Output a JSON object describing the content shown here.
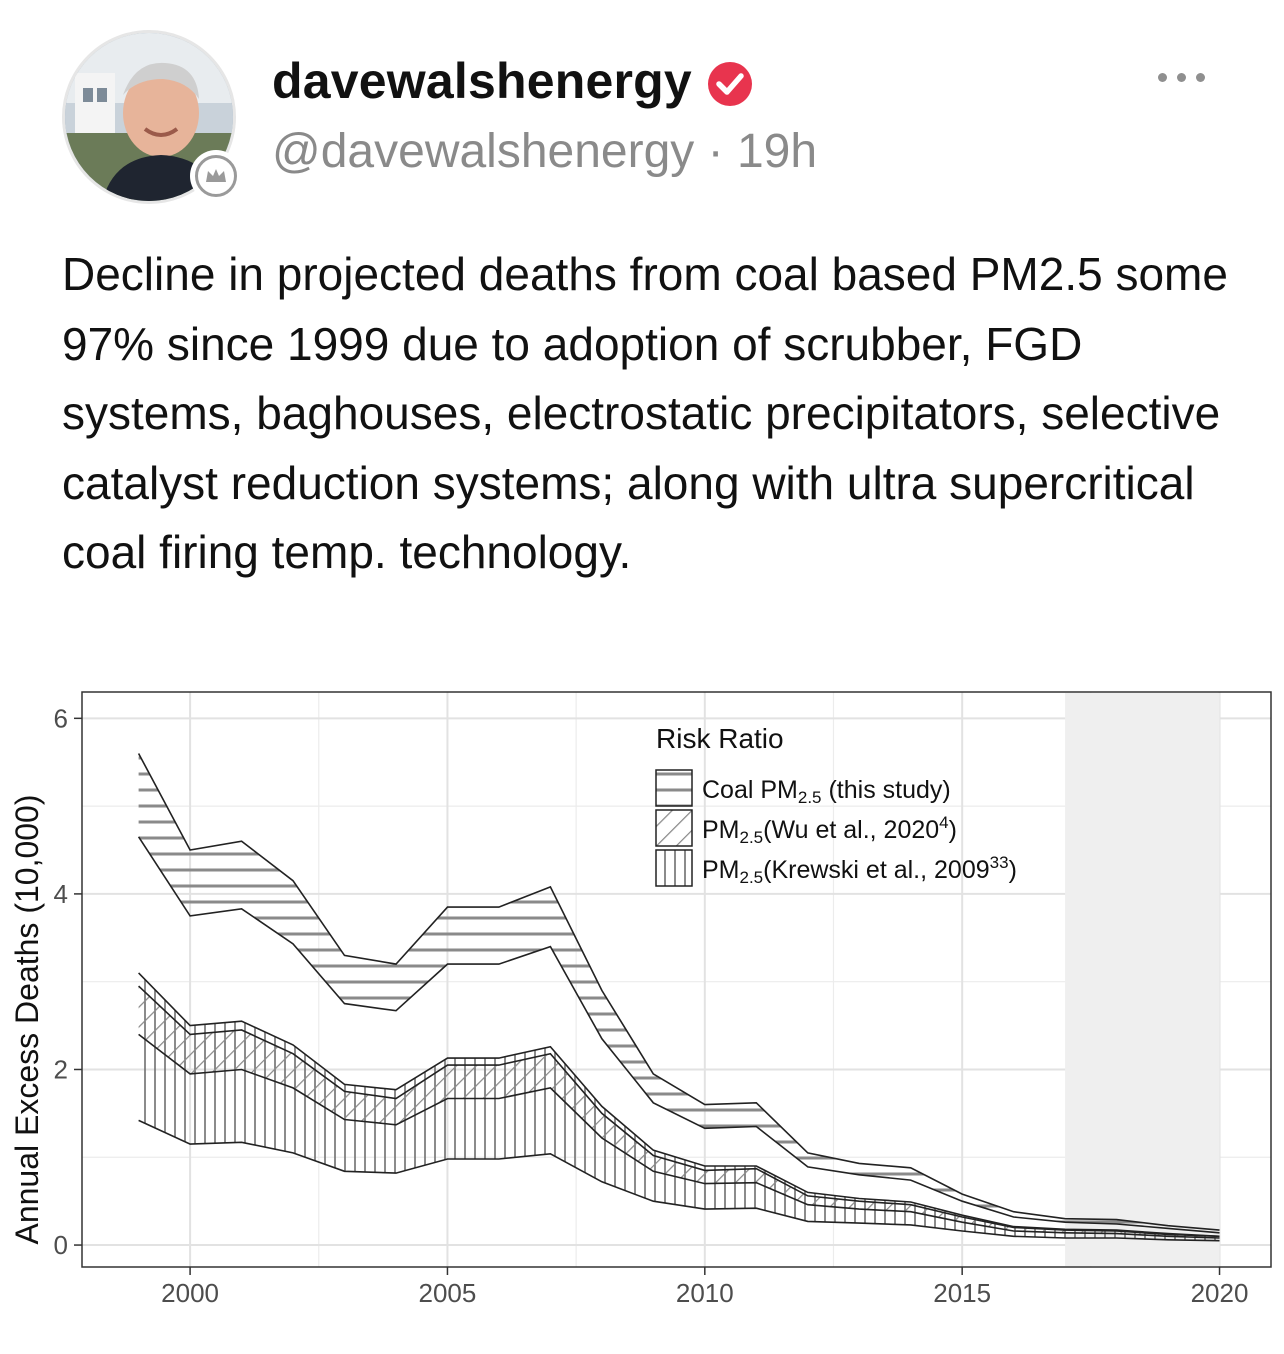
{
  "post": {
    "display_name": "davewalshenergy",
    "handle": "@davewalshenergy",
    "time": "19h",
    "text": "Decline in projected deaths from coal based PM2.5 some 97% since 1999 due to adoption of scrubber, FGD systems, baghouses, electrostatic precipitators, selective catalyst reduction systems; along with ultra supercritical coal firing temp. technology.",
    "verified_color": "#e8344e",
    "more_icon": "more-horizontal-icon"
  },
  "chart_data": {
    "type": "area",
    "ylabel": "Annual Excess Deaths (10,000)",
    "xlabel": "",
    "xlim": [
      1997.9,
      2021.0
    ],
    "ylim": [
      -0.25,
      6.3
    ],
    "x_ticks": [
      2000,
      2005,
      2010,
      2015,
      2020
    ],
    "y_ticks": [
      0,
      2,
      4,
      6
    ],
    "x_tick_labels": [
      "2000",
      "2005",
      "2010",
      "2015",
      "2020"
    ],
    "y_tick_labels": [
      "0",
      "2",
      "4",
      "6"
    ],
    "grid": true,
    "shaded_region": [
      2017,
      2020
    ],
    "legend": {
      "title": "Risk Ratio",
      "position": "top-right",
      "entries": [
        {
          "main": "Coal PM",
          "sub": "2.5",
          "tail": " (this study)",
          "pattern": "horizontal"
        },
        {
          "main": "PM",
          "sub": "2.5",
          "tail": "(Wu et al., 2020",
          "sup": "4",
          "end": ")",
          "pattern": "diagonal"
        },
        {
          "main": "PM",
          "sub": "2.5",
          "tail": "(Krewski et al., 2009",
          "sup": "33",
          "end": ")",
          "pattern": "vertical"
        }
      ]
    },
    "x": [
      1999,
      2000,
      2001,
      2002,
      2003,
      2004,
      2005,
      2006,
      2007,
      2008,
      2009,
      2010,
      2011,
      2012,
      2013,
      2014,
      2015,
      2016,
      2017,
      2018,
      2019,
      2020
    ],
    "series": [
      {
        "pattern": "horizontal",
        "upper": [
          5.6,
          4.5,
          4.6,
          4.15,
          3.3,
          3.2,
          3.85,
          3.85,
          4.08,
          2.9,
          1.95,
          1.6,
          1.62,
          1.05,
          0.93,
          0.88,
          0.58,
          0.38,
          0.3,
          0.29,
          0.22,
          0.17
        ],
        "lower": [
          4.65,
          3.75,
          3.83,
          3.43,
          2.75,
          2.67,
          3.2,
          3.2,
          3.4,
          2.35,
          1.62,
          1.33,
          1.35,
          0.89,
          0.8,
          0.74,
          0.5,
          0.32,
          0.26,
          0.24,
          0.19,
          0.14
        ]
      },
      {
        "pattern": "diagonal",
        "upper": [
          2.95,
          2.4,
          2.45,
          2.18,
          1.75,
          1.67,
          2.05,
          2.05,
          2.18,
          1.5,
          1.02,
          0.85,
          0.87,
          0.56,
          0.5,
          0.46,
          0.32,
          0.2,
          0.17,
          0.16,
          0.12,
          0.1
        ],
        "lower": [
          2.4,
          1.95,
          2.0,
          1.79,
          1.43,
          1.37,
          1.67,
          1.67,
          1.79,
          1.22,
          0.84,
          0.7,
          0.71,
          0.46,
          0.41,
          0.38,
          0.26,
          0.16,
          0.14,
          0.13,
          0.1,
          0.08
        ]
      },
      {
        "pattern": "vertical",
        "upper": [
          3.1,
          2.5,
          2.55,
          2.28,
          1.83,
          1.77,
          2.13,
          2.13,
          2.26,
          1.58,
          1.08,
          0.9,
          0.9,
          0.6,
          0.53,
          0.49,
          0.34,
          0.21,
          0.18,
          0.17,
          0.13,
          0.1
        ],
        "lower": [
          1.42,
          1.15,
          1.17,
          1.05,
          0.84,
          0.82,
          0.98,
          0.98,
          1.04,
          0.72,
          0.5,
          0.41,
          0.42,
          0.27,
          0.25,
          0.23,
          0.16,
          0.1,
          0.08,
          0.08,
          0.06,
          0.05
        ]
      }
    ]
  }
}
